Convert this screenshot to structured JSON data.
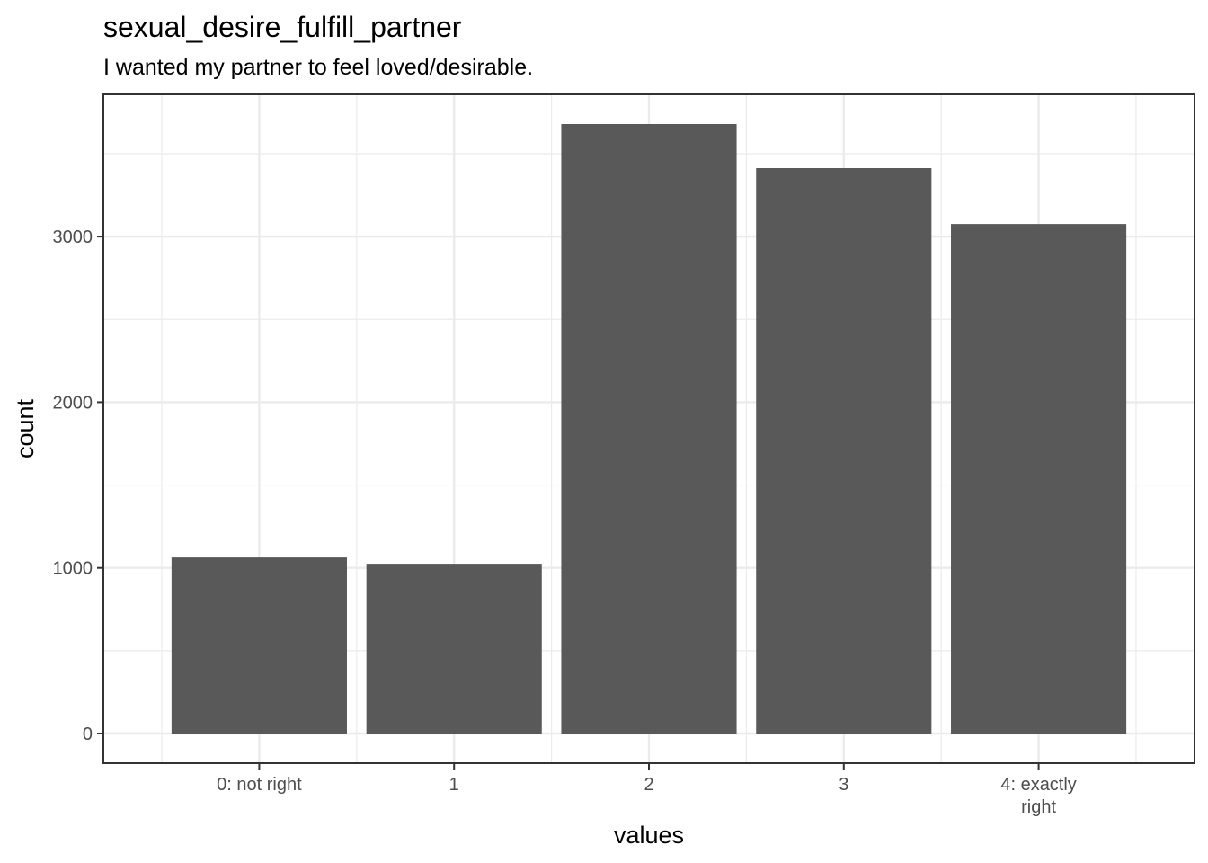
{
  "chart_data": {
    "type": "bar",
    "title": "sexual_desire_fulfill_partner",
    "subtitle": "I wanted my partner to feel loved/desirable.",
    "x_label": "values",
    "y_label": "count",
    "categories": [
      "0: not right",
      "1",
      "2",
      "3",
      "4: exactly\nright"
    ],
    "values": [
      1063,
      1025,
      3679,
      3413,
      3076
    ],
    "color": "#595959",
    "ylim": [
      -179,
      3858
    ],
    "yticks": [
      0,
      1000,
      2000,
      3000
    ],
    "grid": true
  }
}
